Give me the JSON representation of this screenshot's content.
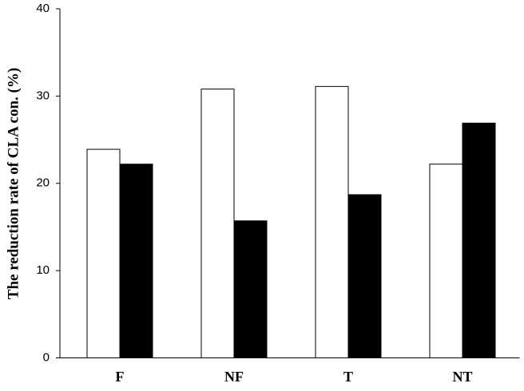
{
  "chart_data": {
    "type": "bar",
    "y_label": "The reduction rate of CLA con. (%)",
    "categories": [
      "F",
      "NF",
      "T",
      "NT"
    ],
    "series": [
      {
        "color": "#ffffff",
        "values": [
          23.9,
          30.8,
          31.1,
          22.2
        ]
      },
      {
        "color": "#000000",
        "values": [
          22.2,
          15.7,
          18.7,
          26.9
        ]
      }
    ],
    "ylim": [
      0,
      40
    ],
    "yticks": [
      0,
      10,
      20,
      30,
      40
    ]
  }
}
